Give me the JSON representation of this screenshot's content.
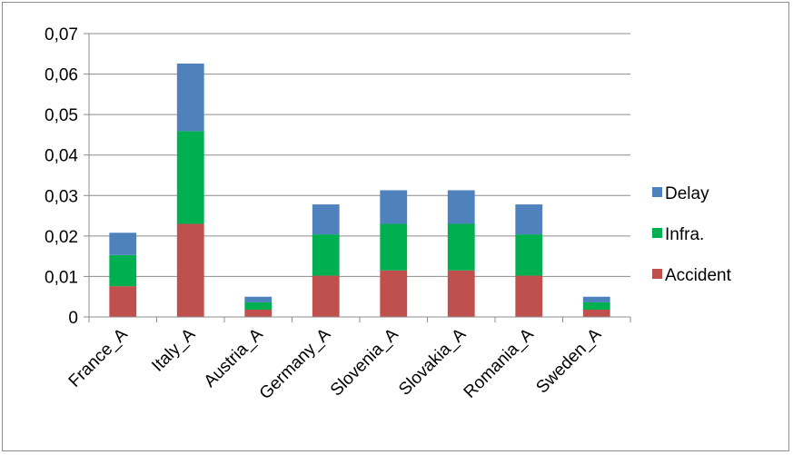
{
  "chart_data": {
    "type": "bar",
    "stacked": true,
    "categories": [
      "France_A",
      "Italy_A",
      "Austria_A",
      "Germany_A",
      "Slovenia_A",
      "Slovakia_A",
      "Romania_A",
      "Sweden_A"
    ],
    "series": [
      {
        "name": "Accident",
        "color": "#c0504d",
        "values": [
          0.0076,
          0.023,
          0.0018,
          0.0102,
          0.0115,
          0.0115,
          0.0102,
          0.0018
        ]
      },
      {
        "name": "Infra.",
        "color": "#00b050",
        "values": [
          0.0077,
          0.0229,
          0.0018,
          0.0102,
          0.0115,
          0.0115,
          0.0102,
          0.0018
        ]
      },
      {
        "name": "Delay",
        "color": "#4f81bd",
        "values": [
          0.0055,
          0.0167,
          0.0014,
          0.0074,
          0.0083,
          0.0083,
          0.0074,
          0.0014
        ]
      }
    ],
    "y_ticks": [
      "0",
      "0,01",
      "0,02",
      "0,03",
      "0,04",
      "0,05",
      "0,06",
      "0,07"
    ],
    "ylim": [
      0,
      0.07
    ],
    "grid": true,
    "legend_position": "right",
    "legend_order": [
      "Delay",
      "Infra.",
      "Accident"
    ]
  }
}
